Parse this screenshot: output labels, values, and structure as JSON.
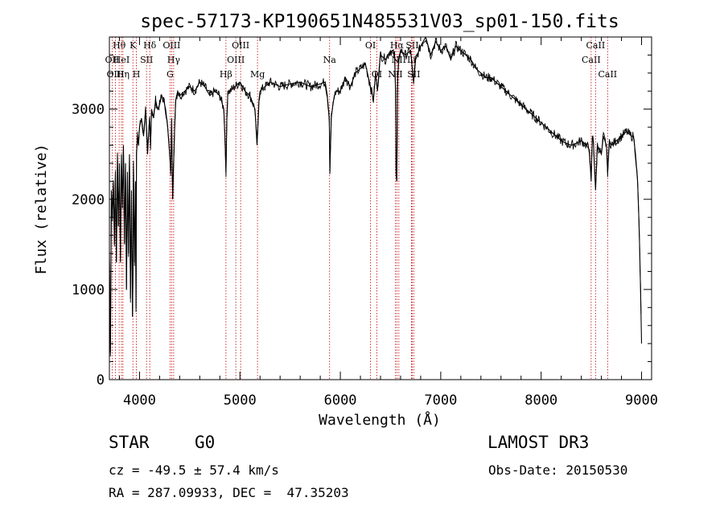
{
  "chart_data": {
    "type": "line",
    "title": "spec-57173-KP190651N485531V03_sp01-150.fits",
    "xlabel": "Wavelength (Å)",
    "ylabel": "Flux (relative)",
    "xlim": [
      3700,
      9100
    ],
    "ylim": [
      0,
      3800
    ],
    "x_ticks": [
      4000,
      5000,
      6000,
      7000,
      8000,
      9000
    ],
    "y_ticks": [
      0,
      1000,
      2000,
      3000
    ],
    "grid": false,
    "series": [
      {
        "name": "flux",
        "x": [
          3700,
          3710,
          3720,
          3730,
          3740,
          3750,
          3760,
          3770,
          3780,
          3790,
          3800,
          3810,
          3820,
          3830,
          3840,
          3850,
          3860,
          3870,
          3880,
          3890,
          3900,
          3910,
          3920,
          3930,
          3935,
          3940,
          3950,
          3960,
          3965,
          3970,
          3980,
          3990,
          4000,
          4020,
          4040,
          4060,
          4080,
          4100,
          4110,
          4120,
          4140,
          4160,
          4180,
          4200,
          4220,
          4240,
          4260,
          4280,
          4300,
          4310,
          4320,
          4330,
          4340,
          4350,
          4360,
          4380,
          4400,
          4450,
          4500,
          4550,
          4600,
          4650,
          4700,
          4750,
          4800,
          4840,
          4850,
          4861,
          4870,
          4880,
          4900,
          4950,
          5000,
          5050,
          5100,
          5150,
          5170,
          5183,
          5190,
          5200,
          5250,
          5300,
          5400,
          5500,
          5600,
          5700,
          5800,
          5850,
          5870,
          5890,
          5896,
          5900,
          5910,
          5920,
          5940,
          5960,
          6000,
          6050,
          6100,
          6150,
          6200,
          6250,
          6300,
          6330,
          6350,
          6370,
          6390,
          6400,
          6450,
          6500,
          6540,
          6550,
          6555,
          6563,
          6570,
          6580,
          6590,
          6600,
          6650,
          6700,
          6720,
          6730,
          6750,
          6800,
          6850,
          6900,
          6950,
          7000,
          7050,
          7100,
          7150,
          7200,
          7250,
          7300,
          7350,
          7400,
          7450,
          7500,
          7550,
          7600,
          7650,
          7700,
          7750,
          7800,
          7850,
          7900,
          7950,
          8000,
          8050,
          8100,
          8150,
          8200,
          8250,
          8300,
          8350,
          8400,
          8450,
          8480,
          8498,
          8510,
          8520,
          8542,
          8560,
          8580,
          8600,
          8620,
          8650,
          8662,
          8680,
          8700,
          8750,
          8800,
          8850,
          8900,
          8920,
          8940,
          8960,
          8970,
          8980,
          8990,
          9000
        ],
        "values": [
          1400,
          300,
          2100,
          1800,
          2200,
          1500,
          2300,
          1300,
          2500,
          1700,
          2400,
          1300,
          2500,
          1900,
          2600,
          1500,
          2400,
          1000,
          2300,
          1400,
          2500,
          900,
          2100,
          700,
          1200,
          2400,
          1300,
          2200,
          800,
          2500,
          2700,
          2600,
          2800,
          2900,
          2700,
          3000,
          2500,
          2900,
          2600,
          3000,
          2900,
          3100,
          3000,
          3050,
          3150,
          3100,
          3000,
          2800,
          2500,
          2300,
          2900,
          2000,
          2400,
          2800,
          3100,
          3200,
          3150,
          3200,
          3250,
          3200,
          3300,
          3250,
          3150,
          3200,
          3150,
          3000,
          2700,
          2300,
          2900,
          3200,
          3200,
          3250,
          3300,
          3200,
          3150,
          3000,
          2600,
          2900,
          3100,
          3200,
          3250,
          3300,
          3250,
          3280,
          3300,
          3250,
          3280,
          3300,
          3150,
          2900,
          2300,
          2500,
          2900,
          3000,
          3150,
          3200,
          3200,
          3350,
          3250,
          3400,
          3450,
          3500,
          3250,
          3100,
          3400,
          3200,
          3500,
          3600,
          3550,
          3650,
          3600,
          3200,
          2300,
          2200,
          3300,
          3500,
          3600,
          3650,
          3600,
          3650,
          3400,
          3300,
          3550,
          3700,
          3800,
          3600,
          3750,
          3650,
          3700,
          3550,
          3700,
          3650,
          3600,
          3550,
          3450,
          3400,
          3350,
          3350,
          3300,
          3250,
          3200,
          3150,
          3100,
          3050,
          3000,
          2950,
          2900,
          2850,
          2800,
          2750,
          2700,
          2650,
          2620,
          2600,
          2620,
          2650,
          2600,
          2550,
          2200,
          2700,
          2650,
          2100,
          2600,
          2550,
          2500,
          2700,
          2600,
          2300,
          2650,
          2600,
          2650,
          2700,
          2750,
          2700,
          2700,
          2500,
          2200,
          1900,
          1500,
          1000,
          400
        ]
      }
    ],
    "line_markers": [
      {
        "label": "Hθ",
        "x": 3797,
        "row": 0
      },
      {
        "label": "OII",
        "x": 3727,
        "row": 1
      },
      {
        "label": "OIII",
        "x": 3760,
        "row": 2
      },
      {
        "label": "HeI",
        "x": 3820,
        "row": 1
      },
      {
        "label": "Hη",
        "x": 3835,
        "row": 2
      },
      {
        "label": "K",
        "x": 3934,
        "row": 0
      },
      {
        "label": "H",
        "x": 3969,
        "row": 2
      },
      {
        "label": "SII",
        "x": 4070,
        "row": 1
      },
      {
        "label": "Hδ",
        "x": 4102,
        "row": 0
      },
      {
        "label": "OIII",
        "x": 4320,
        "row": 0
      },
      {
        "label": "Hγ",
        "x": 4340,
        "row": 1
      },
      {
        "label": "G",
        "x": 4304,
        "row": 2
      },
      {
        "label": "Hβ",
        "x": 4861,
        "row": 2
      },
      {
        "label": "OIII",
        "x": 4959,
        "row": 1
      },
      {
        "label": "OIII",
        "x": 5007,
        "row": 0
      },
      {
        "label": "Mg",
        "x": 5175,
        "row": 2
      },
      {
        "label": "Na",
        "x": 5893,
        "row": 1
      },
      {
        "label": "OI",
        "x": 6300,
        "row": 0
      },
      {
        "label": "OI",
        "x": 6363,
        "row": 2
      },
      {
        "label": "Hα",
        "x": 6563,
        "row": 0
      },
      {
        "label": "NII",
        "x": 6548,
        "row": 2
      },
      {
        "label": "NII",
        "x": 6583,
        "row": 1
      },
      {
        "label": "SII",
        "x": 6716,
        "row": 0
      },
      {
        "label": "Li",
        "x": 6708,
        "row": 1
      },
      {
        "label": "SII",
        "x": 6731,
        "row": 2
      },
      {
        "label": "CaII",
        "x": 8498,
        "row": 1
      },
      {
        "label": "CaII",
        "x": 8542,
        "row": 0
      },
      {
        "label": "CaII",
        "x": 8662,
        "row": 2
      }
    ]
  },
  "info": {
    "object_type": "STAR",
    "subclass": "G0",
    "survey": "LAMOST DR3",
    "cz": "cz = -49.5 ± 57.4 km/s",
    "obs_date": "Obs-Date: 20150530",
    "radec": "RA = 287.09933, DEC =  47.35203"
  },
  "colors": {
    "line": "#000000",
    "marker": "#c00000",
    "axis": "#000000"
  }
}
